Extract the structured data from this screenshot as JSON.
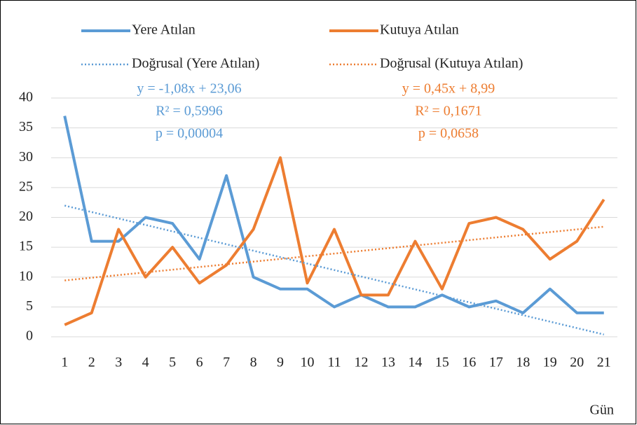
{
  "chart_data": {
    "type": "line",
    "x": [
      1,
      2,
      3,
      4,
      5,
      6,
      7,
      8,
      9,
      10,
      11,
      12,
      13,
      14,
      15,
      16,
      17,
      18,
      19,
      20,
      21
    ],
    "series": [
      {
        "name": "Yere Atılan",
        "color": "#5b9bd5",
        "values": [
          37,
          16,
          16,
          20,
          19,
          13,
          27,
          10,
          8,
          8,
          5,
          7,
          5,
          5,
          7,
          5,
          6,
          4,
          8,
          4,
          4
        ]
      },
      {
        "name": "Kutuya Atılan",
        "color": "#ed7d31",
        "values": [
          2,
          4,
          18,
          10,
          15,
          9,
          12,
          18,
          30,
          9,
          18,
          7,
          7,
          16,
          8,
          19,
          20,
          18,
          13,
          16,
          23
        ]
      },
      {
        "name": "Doğrusal (Yere Atılan)",
        "color": "#5b9bd5",
        "dashed": true,
        "x": [
          1,
          21
        ],
        "values": [
          21.98,
          0.38
        ]
      },
      {
        "name": "Doğrusal (Kutuya Atılan)",
        "color": "#ed7d31",
        "dashed": true,
        "x": [
          1,
          21
        ],
        "values": [
          9.44,
          18.44
        ]
      }
    ],
    "annotations": [
      {
        "color": "#5b9bd5",
        "lines": [
          "y = -1,08x + 23,06",
          "R² = 0,5996",
          "p = 0,00004"
        ]
      },
      {
        "color": "#ed7d31",
        "lines": [
          "y = 0,45x + 8,99",
          "R² = 0,1671",
          "p = 0,0658"
        ]
      }
    ],
    "x_label": "Gün",
    "xlim": [
      0.5,
      21.5
    ],
    "xticks": [
      1,
      2,
      3,
      4,
      5,
      6,
      7,
      8,
      9,
      10,
      11,
      12,
      13,
      14,
      15,
      16,
      17,
      18,
      19,
      20,
      21
    ],
    "ylim": [
      0,
      40
    ],
    "yticks": [
      0,
      5,
      10,
      15,
      20,
      25,
      30,
      35,
      40
    ],
    "grid": true,
    "legend": "top"
  }
}
